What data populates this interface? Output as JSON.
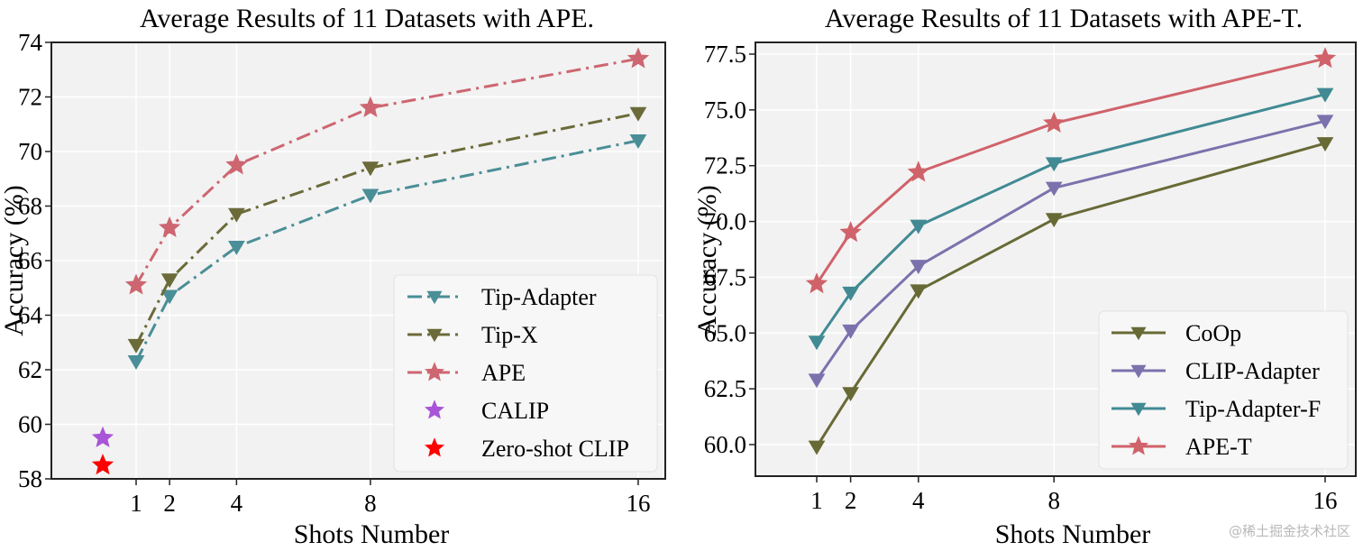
{
  "chart_data": [
    {
      "type": "line",
      "title": "Average Results of 11 Datasets with APE.",
      "xlabel": "Shots Number",
      "ylabel": "Accuracy (%)",
      "x": [
        1,
        2,
        4,
        8,
        16
      ],
      "xticks": [
        "1",
        "2",
        "4",
        "8",
        "16"
      ],
      "yticks": [
        "58",
        "60",
        "62",
        "64",
        "66",
        "68",
        "70",
        "72",
        "74"
      ],
      "ylim": [
        58,
        74
      ],
      "grid": true,
      "legend_position": "bottom-right",
      "series": [
        {
          "name": "Tip-Adapter",
          "values": [
            62.3,
            64.7,
            66.5,
            68.4,
            70.4
          ],
          "color": "#4a8e97",
          "marker": "triangle-down",
          "linestyle": "dashdot"
        },
        {
          "name": "Tip-X",
          "values": [
            62.9,
            65.3,
            67.7,
            69.4,
            71.4
          ],
          "color": "#6b6b3a",
          "marker": "triangle-down",
          "linestyle": "dashdot"
        },
        {
          "name": "APE",
          "values": [
            65.1,
            67.2,
            69.5,
            71.6,
            73.4
          ],
          "color": "#cd6670",
          "marker": "star",
          "linestyle": "dashdot"
        }
      ],
      "points": [
        {
          "name": "CALIP",
          "x": 0,
          "value": 59.5,
          "color": "#a855d8",
          "marker": "star"
        },
        {
          "name": "Zero-shot CLIP",
          "x": 0,
          "value": 58.5,
          "color": "#ff0000",
          "marker": "star"
        }
      ]
    },
    {
      "type": "line",
      "title": "Average Results of 11 Datasets with APE-T.",
      "xlabel": "Shots Number",
      "ylabel": "Accuracy (%)",
      "x": [
        1,
        2,
        4,
        8,
        16
      ],
      "xticks": [
        "1",
        "2",
        "4",
        "8",
        "16"
      ],
      "yticks": [
        "60.0",
        "62.5",
        "65.0",
        "67.5",
        "70.0",
        "72.5",
        "75.0",
        "77.5"
      ],
      "ylim": [
        58.6,
        78.2
      ],
      "grid": true,
      "legend_position": "bottom-right",
      "series": [
        {
          "name": "CoOp",
          "values": [
            59.9,
            62.3,
            66.9,
            70.1,
            73.5
          ],
          "color": "#686a36",
          "marker": "triangle-down",
          "linestyle": "solid"
        },
        {
          "name": "CLIP-Adapter",
          "values": [
            62.9,
            65.1,
            68.0,
            71.5,
            74.5
          ],
          "color": "#7b72ad",
          "marker": "triangle-down",
          "linestyle": "solid"
        },
        {
          "name": "Tip-Adapter-F",
          "values": [
            64.6,
            66.8,
            69.8,
            72.6,
            75.7
          ],
          "color": "#418a94",
          "marker": "triangle-down",
          "linestyle": "solid"
        },
        {
          "name": "APE-T",
          "values": [
            67.2,
            69.5,
            72.2,
            74.4,
            77.3
          ],
          "color": "#d0626a",
          "marker": "star",
          "linestyle": "solid"
        }
      ]
    }
  ],
  "watermark": "@稀土掘金技术社区"
}
